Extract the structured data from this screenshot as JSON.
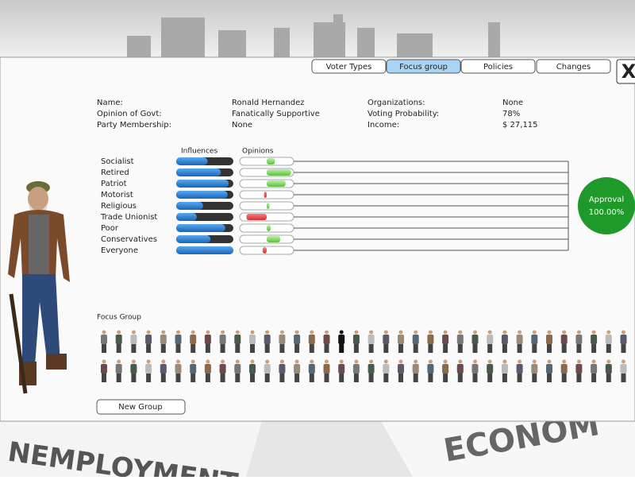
{
  "tabs": [
    "Voter Types",
    "Focus group",
    "Policies",
    "Changes"
  ],
  "active_tab": 1,
  "close_button": "X",
  "info": {
    "left": [
      {
        "label": "Name:",
        "value": "Ronald Hernandez"
      },
      {
        "label": "Opinion of Govt:",
        "value": "Fanatically Supportive"
      },
      {
        "label": "Party Membership:",
        "value": "None"
      }
    ],
    "right": [
      {
        "label": "Organizations:",
        "value": "None"
      },
      {
        "label": "Voting Probability:",
        "value": "78%"
      },
      {
        "label": "Income:",
        "value": "$ 27,115"
      }
    ]
  },
  "headers": {
    "influences": "Influences",
    "opinions": "Opinions"
  },
  "groups": [
    {
      "name": "Socialist",
      "influence": 0.55,
      "opinion": 0.3
    },
    {
      "name": "Retired",
      "influence": 0.78,
      "opinion": 0.9
    },
    {
      "name": "Patriot",
      "influence": 0.92,
      "opinion": 0.7
    },
    {
      "name": "Motorist",
      "influence": 0.9,
      "opinion": -0.1
    },
    {
      "name": "Religious",
      "influence": 0.47,
      "opinion": 0.1
    },
    {
      "name": "Trade Unionist",
      "influence": 0.36,
      "opinion": -0.75
    },
    {
      "name": "Poor",
      "influence": 0.86,
      "opinion": 0.15
    },
    {
      "name": "Conservatives",
      "influence": 0.6,
      "opinion": 0.5
    },
    {
      "name": "Everyone",
      "influence": 1.0,
      "opinion": -0.15
    }
  ],
  "approval": {
    "label": "Approval",
    "value": "100.00%"
  },
  "focus_group_label": "Focus Group",
  "new_group_button": "New Group"
}
